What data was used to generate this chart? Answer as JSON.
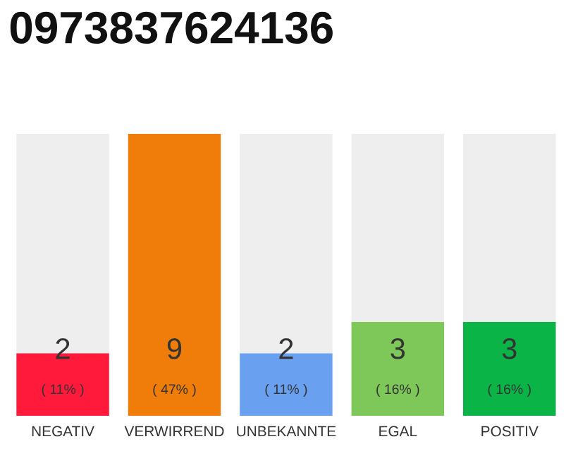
{
  "chart_data": {
    "type": "bar",
    "title": "0973837624136",
    "categories": [
      "NEGATIV",
      "VERWIRREND",
      "UNBEKANNTE",
      "EGAL",
      "POSITIV"
    ],
    "series": [
      {
        "colors": [
          "#ff1a3c",
          "#f07d0a",
          "#6aa0f0",
          "#7ec85a",
          "#0ab446"
        ],
        "values": [
          2,
          9,
          2,
          3,
          3
        ],
        "value_labels": [
          "2\n( 11% )",
          "9\n( 47% )",
          "2\n( 11% )",
          "3\n( 16% )",
          "3\n( 16% )"
        ]
      },
      {
        "color": "#eeeeee",
        "values": [
          7,
          0,
          7,
          6,
          6
        ]
      }
    ],
    "stacked": true
  }
}
